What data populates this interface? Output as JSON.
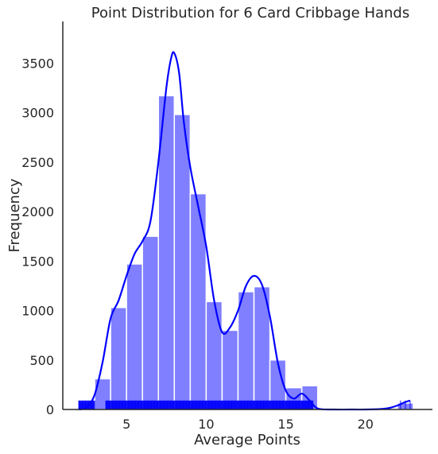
{
  "chart_data": {
    "type": "histogram",
    "title": "Point Distribution for 6 Card Cribbage Hands",
    "xlabel": "Average Points",
    "ylabel": "Frequency",
    "xlim": [
      1.0,
      24.2
    ],
    "ylim": [
      0,
      3920
    ],
    "xticks": [
      5,
      10,
      15,
      20
    ],
    "yticks": [
      0,
      500,
      1000,
      1500,
      2000,
      2500,
      3000,
      3500
    ],
    "grid": false,
    "colors": {
      "bars": "#0000ff",
      "kde": "#0000ff",
      "rug": "#0000ff",
      "axis": "#262626"
    },
    "bars": [
      {
        "x0": 2.0,
        "x1": 3.0,
        "count": 70
      },
      {
        "x0": 3.0,
        "x1": 4.0,
        "count": 310
      },
      {
        "x0": 4.0,
        "x1": 5.0,
        "count": 1030
      },
      {
        "x0": 5.0,
        "x1": 6.0,
        "count": 1470
      },
      {
        "x0": 6.0,
        "x1": 7.0,
        "count": 1750
      },
      {
        "x0": 7.0,
        "x1": 8.0,
        "count": 3170
      },
      {
        "x0": 8.0,
        "x1": 9.0,
        "count": 2980
      },
      {
        "x0": 9.0,
        "x1": 10.0,
        "count": 2180
      },
      {
        "x0": 10.0,
        "x1": 11.0,
        "count": 1090
      },
      {
        "x0": 11.0,
        "x1": 12.0,
        "count": 800
      },
      {
        "x0": 12.0,
        "x1": 13.0,
        "count": 1190
      },
      {
        "x0": 13.0,
        "x1": 14.0,
        "count": 1240
      },
      {
        "x0": 14.0,
        "x1": 15.0,
        "count": 500
      },
      {
        "x0": 15.0,
        "x1": 16.0,
        "count": 220
      },
      {
        "x0": 16.0,
        "x1": 17.0,
        "count": 240
      },
      {
        "x0": 22.0,
        "x1": 23.0,
        "count": 65
      }
    ],
    "kde": {
      "x": [
        2.0,
        2.5,
        3.0,
        3.5,
        4.0,
        4.5,
        5.0,
        5.5,
        6.0,
        6.5,
        7.0,
        7.5,
        7.8,
        8.0,
        8.3,
        8.6,
        9.0,
        9.5,
        10.0,
        10.5,
        11.0,
        11.5,
        12.0,
        12.5,
        13.0,
        13.5,
        14.0,
        14.5,
        15.0,
        15.5,
        16.0,
        16.5,
        17.0,
        18.0,
        19.0,
        20.0,
        21.0,
        21.5,
        22.0,
        22.5,
        22.8
      ],
      "y": [
        0,
        25,
        150,
        480,
        920,
        1100,
        1350,
        1570,
        1700,
        1900,
        2500,
        3250,
        3550,
        3600,
        3400,
        2900,
        2450,
        2050,
        1650,
        1100,
        780,
        830,
        1000,
        1250,
        1350,
        1260,
        940,
        470,
        190,
        110,
        160,
        90,
        10,
        0,
        0,
        0,
        5,
        15,
        40,
        75,
        90
      ]
    },
    "rug": {
      "dense_ranges": [
        [
          2.0,
          3.0
        ],
        [
          3.7,
          16.7
        ]
      ],
      "sparse_points": [
        22.2,
        22.5,
        22.8
      ],
      "height": 90
    }
  }
}
